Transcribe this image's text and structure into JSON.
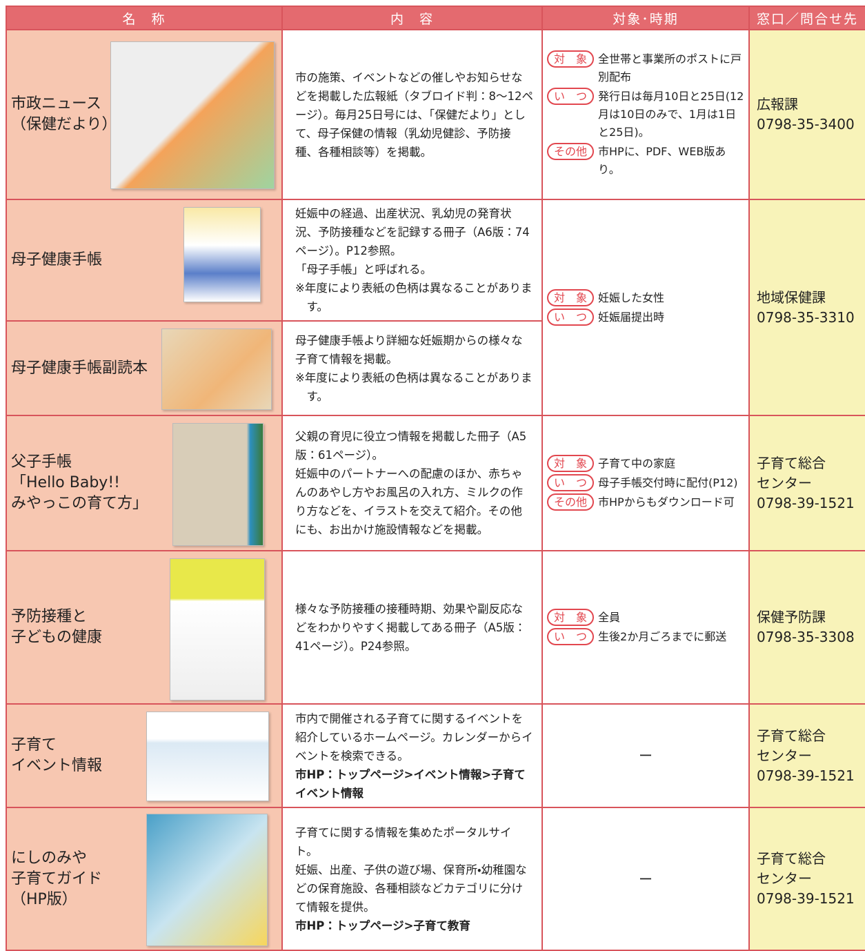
{
  "table": {
    "header": [
      "名　称",
      "内　容",
      "対象･時期",
      "窓口／問合せ先"
    ],
    "rows": [
      {
        "name": [
          "市政ニュース",
          "（保健だより）"
        ],
        "content": [
          {
            "text": "市の施策、イベントなどの催しやお知らせなどを掲載した広報紙（タブロイド判：8～12ページ）。毎月25日号には、「保健だより」として、母子保健の情報（乳幼児健診、予防接種、各種相談等）を掲載。"
          }
        ],
        "target": [
          {
            "label": "対　象",
            "text": "全世帯と事業所のポストに戸別配布"
          },
          {
            "label": "い　つ",
            "text": "発行日は毎月10日と25日(12月は10日のみで、1月は1日と25日)。"
          },
          {
            "label": "その他",
            "text": "市HPに、PDF、WEB版あり。"
          }
        ],
        "contact": [
          "広報課",
          "0798-35-3400"
        ]
      },
      {
        "name": [
          "母子健康手帳"
        ],
        "content": [
          {
            "text": "妊娠中の経過、出産状況、乳幼児の発育状況、予防接種などを記録する冊子（A6版：74ページ）。P12参照。"
          },
          {
            "text": "「母子手帳」と呼ばれる。"
          },
          {
            "text": "※年度により表紙の色柄は異なることがあります。",
            "note": true
          }
        ],
        "target": [
          {
            "label": "対　象",
            "text": "妊娠した女性"
          },
          {
            "label": "い　つ",
            "text": "妊娠届提出時"
          }
        ],
        "contact": [
          "地域保健課",
          "0798-35-3310"
        ]
      },
      {
        "name": [
          "母子健康手帳副読本"
        ],
        "content": [
          {
            "text": "母子健康手帳より詳細な妊娠期からの様々な子育て情報を掲載。"
          },
          {
            "text": "※年度により表紙の色柄は異なることがあります。",
            "note": true
          }
        ]
      },
      {
        "name": [
          "父子手帳",
          "「Hello Baby!!",
          "みやっこの育て方」"
        ],
        "content": [
          {
            "text": "父親の育児に役立つ情報を掲載した冊子（A5版：61ページ）。"
          },
          {
            "text": "妊娠中のパートナーへの配慮のほか、赤ちゃんのあやし方やお風呂の入れ方、ミルクの作り方などを、イラストを交えて紹介。その他にも、お出かけ施設情報などを掲載。"
          }
        ],
        "target": [
          {
            "label": "対　象",
            "text": "子育て中の家庭"
          },
          {
            "label": "い　つ",
            "text": "母子手帳交付時に配付(P12)"
          },
          {
            "label": "その他",
            "text": "市HPからもダウンロード可"
          }
        ],
        "contact": [
          "子育て総合",
          "センター",
          "0798-39-1521"
        ]
      },
      {
        "name": [
          "予防接種と",
          "子どもの健康"
        ],
        "content": [
          {
            "text": "様々な予防接種の接種時期、効果や副反応などをわかりやすく掲載してある冊子（A5版：41ページ）。P24参照。"
          }
        ],
        "target": [
          {
            "label": "対　象",
            "text": "全員"
          },
          {
            "label": "い　つ",
            "text": "生後2か月ごろまでに郵送"
          }
        ],
        "contact": [
          "保健予防課",
          "0798-35-3308"
        ]
      },
      {
        "name": [
          "子育て",
          "イベント情報"
        ],
        "content": [
          {
            "text": "市内で開催される子育てに関するイベントを紹介しているホームページ。カレンダーからイベントを検索できる。"
          },
          {
            "text": "市HP：トップページ>イベント情報>子育てイベント情報",
            "bold": true
          }
        ],
        "target": "ー",
        "contact": [
          "子育て総合",
          "センター",
          "0798-39-1521"
        ]
      },
      {
        "name": [
          "にしのみや",
          "子育てガイド",
          "（HP版）"
        ],
        "content": [
          {
            "text": "子育てに関する情報を集めたポータルサイト。"
          },
          {
            "text": "妊娠、出産、子供の遊び場、保育所・幼稚園などの保育施設、各種相談などカテゴリに分けて情報を提供。"
          },
          {
            "text": "市HP：トップページ>子育て教育",
            "bold": true
          }
        ],
        "target": "ー",
        "contact": [
          "子育て総合",
          "センター",
          "0798-39-1521"
        ]
      }
    ]
  }
}
